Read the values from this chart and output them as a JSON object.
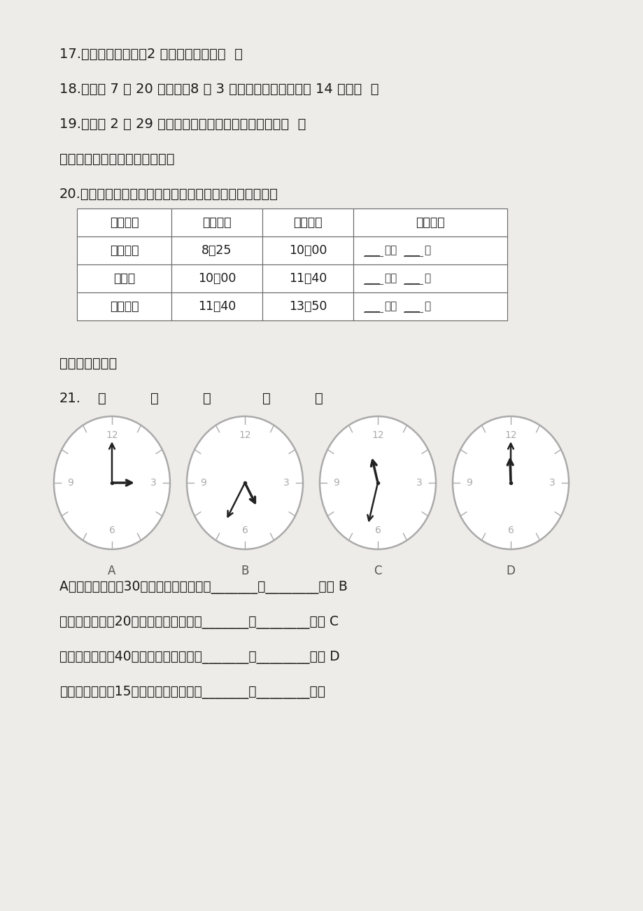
{
  "bg_color": "#eeece8",
  "text_color": "#1a1a1a",
  "line17": "17.红红坐车去东湖，2 小时准时开车。（  ）",
  "line18": "18.夏令营 7 月 20 日开营，8 月 3 日闭营，夏令营共活动 14 天。（  ）",
  "line19": "19.赵去是 2 月 29 日出生的，出生的那一年是闰年。（  ）",
  "section5_title": "五、计算下表中游客所用时间。",
  "line20": "20.民族村真热闹，让我们算一算游各个村寨所用的时间。",
  "table_headers": [
    "村寨名称",
    "开始时间",
    "结束时间",
    "参观时间"
  ],
  "table_rows": [
    [
      "傣族部落",
      "8：25",
      "10：00",
      "___小时___分"
    ],
    [
      "纳西村",
      "10：00",
      "11：40",
      "___小时___分"
    ],
    [
      "白族村寨",
      "11：40",
      "13：50",
      "___小时___分"
    ]
  ],
  "section6_title": "六、社区时钟。",
  "line21_parts": [
    "21.",
    "社",
    "区",
    "时",
    "钟",
    "。"
  ],
  "clock_labels": [
    "A",
    "B",
    "C",
    "D"
  ],
  "clock_A_hands": {
    "hour_deg": 90,
    "min_deg": 0
  },
  "clock_B_hands": {
    "hour_deg": 150,
    "min_deg": 210
  },
  "clock_C_hands": {
    "hour_deg": 345,
    "min_deg": 195
  },
  "clock_D_hands": {
    "hour_deg": 358,
    "min_deg": 0
  },
  "text_lines": [
    "A钟比北京时间慢30分，此时北京时间是_______时________分。 B",
    "钟比北京时间慢20分，此时北京时间是_______时________分。 C",
    "钟比北京时间快40分，此时北京时间是_______时________分。 D",
    "钟比北京时间快15分，此时北京时间是_______时________分。"
  ]
}
